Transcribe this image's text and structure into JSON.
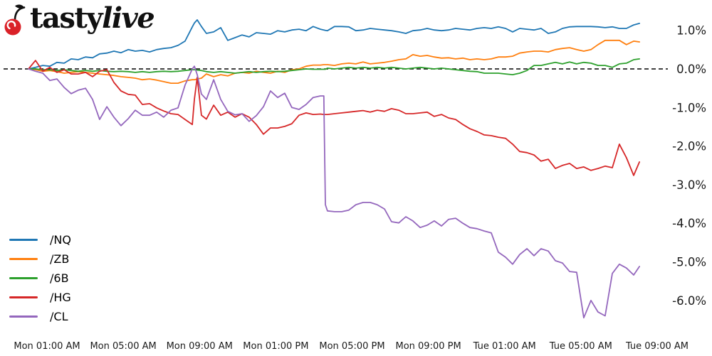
{
  "brand": {
    "name_regular": "tasty",
    "name_italic": "live",
    "cherry_color": "#da2128"
  },
  "chart_data": {
    "type": "line",
    "title": "",
    "xlabel": "",
    "ylabel": "",
    "grid": false,
    "legend_position": "lower left",
    "x_unit": "hours since Mon 12:00 AM",
    "x_range_hours": [
      0.03,
      32.07
    ],
    "ylim_percent": [
      -6.9,
      1.55
    ],
    "zero_line": {
      "value": 0,
      "style": "dashed",
      "color": "#000000"
    },
    "x_ticks": [
      {
        "hour": 1,
        "label": "Mon 01:00 AM"
      },
      {
        "hour": 5,
        "label": "Mon 05:00 AM"
      },
      {
        "hour": 9,
        "label": "Mon 09:00 AM"
      },
      {
        "hour": 13,
        "label": "Mon 01:00 PM"
      },
      {
        "hour": 17,
        "label": "Mon 05:00 PM"
      },
      {
        "hour": 21,
        "label": "Mon 09:00 PM"
      },
      {
        "hour": 25,
        "label": "Tue 01:00 AM"
      },
      {
        "hour": 29,
        "label": "Tue 05:00 AM"
      },
      {
        "hour": 33,
        "label": "Tue 09:00 AM"
      }
    ],
    "y_ticks": [
      {
        "value": 1.0,
        "label": "1.0%"
      },
      {
        "value": 0.0,
        "label": "0.0%"
      },
      {
        "value": -1.0,
        "label": "-1.0%"
      },
      {
        "value": -2.0,
        "label": "-2.0%"
      },
      {
        "value": -3.0,
        "label": "-3.0%"
      },
      {
        "value": -4.0,
        "label": "-4.0%"
      },
      {
        "value": -5.0,
        "label": "-5.0%"
      },
      {
        "value": -6.0,
        "label": "-6.0%"
      }
    ],
    "x_hours": [
      0.03,
      0.4,
      0.78,
      1.15,
      1.52,
      1.9,
      2.27,
      2.64,
      3.02,
      3.39,
      3.76,
      4.14,
      4.51,
      4.88,
      5.26,
      5.63,
      6.0,
      6.38,
      6.75,
      7.12,
      7.5,
      7.87,
      8.24,
      8.62,
      8.73,
      8.88,
      9.1,
      9.36,
      9.74,
      10.11,
      10.48,
      10.86,
      11.23,
      11.6,
      11.98,
      12.35,
      12.72,
      13.1,
      13.47,
      13.84,
      14.22,
      14.59,
      14.96,
      15.34,
      15.52,
      15.6,
      15.71,
      16.08,
      16.46,
      16.83,
      17.2,
      17.58,
      17.95,
      18.32,
      18.7,
      19.07,
      19.45,
      19.82,
      20.19,
      20.57,
      20.94,
      21.31,
      21.69,
      22.06,
      22.43,
      22.81,
      23.18,
      23.55,
      23.93,
      24.3,
      24.67,
      25.05,
      25.42,
      25.79,
      26.17,
      26.54,
      26.91,
      27.29,
      27.66,
      28.03,
      28.41,
      28.78,
      29.15,
      29.53,
      29.9,
      30.27,
      30.65,
      31.02,
      31.39,
      31.77,
      32.07
    ],
    "series": [
      {
        "name": "/NQ",
        "color": "#1f77b4",
        "values": [
          0.0,
          0.04,
          0.09,
          0.07,
          0.17,
          0.15,
          0.26,
          0.24,
          0.31,
          0.29,
          0.39,
          0.41,
          0.46,
          0.42,
          0.5,
          0.46,
          0.48,
          0.44,
          0.5,
          0.53,
          0.55,
          0.61,
          0.72,
          1.09,
          1.19,
          1.27,
          1.1,
          0.92,
          0.96,
          1.07,
          0.74,
          0.81,
          0.88,
          0.83,
          0.94,
          0.92,
          0.9,
          0.99,
          0.96,
          1.01,
          1.03,
          0.99,
          1.1,
          1.03,
          1.01,
          1.0,
          0.99,
          1.1,
          1.1,
          1.09,
          0.99,
          1.01,
          1.05,
          1.03,
          1.01,
          0.99,
          0.96,
          0.92,
          0.99,
          1.01,
          1.05,
          1.01,
          0.99,
          1.01,
          1.05,
          1.03,
          1.01,
          1.05,
          1.07,
          1.05,
          1.09,
          1.05,
          0.96,
          1.05,
          1.03,
          1.01,
          1.05,
          0.92,
          0.96,
          1.05,
          1.09,
          1.1,
          1.1,
          1.1,
          1.09,
          1.07,
          1.09,
          1.05,
          1.05,
          1.14,
          1.18
        ]
      },
      {
        "name": "/ZB",
        "color": "#ff7f0e",
        "values": [
          0.0,
          -0.02,
          -0.06,
          -0.04,
          -0.07,
          -0.11,
          -0.09,
          -0.07,
          -0.09,
          -0.11,
          -0.13,
          -0.15,
          -0.17,
          -0.2,
          -0.22,
          -0.24,
          -0.28,
          -0.26,
          -0.29,
          -0.33,
          -0.37,
          -0.37,
          -0.31,
          -0.28,
          -0.28,
          -0.26,
          -0.24,
          -0.13,
          -0.2,
          -0.15,
          -0.18,
          -0.11,
          -0.09,
          -0.11,
          -0.06,
          -0.09,
          -0.11,
          -0.06,
          -0.09,
          -0.02,
          0.0,
          0.07,
          0.1,
          0.1,
          0.11,
          0.11,
          0.11,
          0.09,
          0.13,
          0.15,
          0.13,
          0.18,
          0.13,
          0.15,
          0.17,
          0.2,
          0.24,
          0.26,
          0.37,
          0.33,
          0.35,
          0.31,
          0.28,
          0.29,
          0.26,
          0.28,
          0.24,
          0.26,
          0.24,
          0.26,
          0.31,
          0.31,
          0.33,
          0.41,
          0.44,
          0.46,
          0.46,
          0.44,
          0.5,
          0.53,
          0.55,
          0.5,
          0.46,
          0.5,
          0.63,
          0.74,
          0.74,
          0.74,
          0.63,
          0.72,
          0.7
        ]
      },
      {
        "name": "/6B",
        "color": "#2ca02c",
        "values": [
          0.0,
          0.0,
          -0.02,
          -0.02,
          -0.04,
          -0.02,
          -0.04,
          -0.06,
          -0.04,
          -0.06,
          -0.04,
          -0.06,
          -0.07,
          -0.06,
          -0.07,
          -0.09,
          -0.07,
          -0.09,
          -0.07,
          -0.06,
          -0.07,
          -0.06,
          -0.04,
          -0.02,
          -0.02,
          -0.03,
          -0.04,
          -0.07,
          -0.09,
          -0.07,
          -0.09,
          -0.11,
          -0.09,
          -0.07,
          -0.09,
          -0.07,
          -0.06,
          -0.07,
          -0.06,
          -0.04,
          -0.02,
          0.0,
          -0.01,
          -0.01,
          -0.01,
          -0.01,
          0.02,
          0.0,
          0.02,
          0.04,
          0.02,
          0.04,
          0.02,
          0.04,
          0.02,
          0.04,
          0.02,
          0.0,
          0.02,
          0.04,
          0.02,
          0.0,
          0.02,
          0.0,
          -0.02,
          -0.04,
          -0.06,
          -0.07,
          -0.11,
          -0.11,
          -0.11,
          -0.13,
          -0.15,
          -0.11,
          -0.04,
          0.09,
          0.09,
          0.13,
          0.17,
          0.13,
          0.18,
          0.13,
          0.17,
          0.15,
          0.09,
          0.09,
          0.04,
          0.13,
          0.15,
          0.24,
          0.26
        ]
      },
      {
        "name": "/HG",
        "color": "#d62728",
        "values": [
          0.0,
          0.22,
          -0.06,
          0.04,
          -0.09,
          -0.02,
          -0.13,
          -0.13,
          -0.09,
          -0.2,
          -0.06,
          -0.02,
          -0.35,
          -0.57,
          -0.66,
          -0.68,
          -0.92,
          -0.9,
          -1.01,
          -1.09,
          -1.16,
          -1.18,
          -1.31,
          -1.44,
          -0.79,
          -0.22,
          -1.2,
          -1.3,
          -0.94,
          -1.2,
          -1.12,
          -1.25,
          -1.16,
          -1.25,
          -1.44,
          -1.69,
          -1.53,
          -1.53,
          -1.49,
          -1.42,
          -1.2,
          -1.14,
          -1.18,
          -1.17,
          -1.18,
          -1.18,
          -1.18,
          -1.16,
          -1.14,
          -1.12,
          -1.1,
          -1.08,
          -1.12,
          -1.07,
          -1.1,
          -1.03,
          -1.07,
          -1.16,
          -1.16,
          -1.14,
          -1.12,
          -1.23,
          -1.18,
          -1.27,
          -1.31,
          -1.44,
          -1.55,
          -1.62,
          -1.71,
          -1.73,
          -1.77,
          -1.8,
          -1.95,
          -2.14,
          -2.17,
          -2.23,
          -2.39,
          -2.34,
          -2.58,
          -2.5,
          -2.45,
          -2.58,
          -2.54,
          -2.63,
          -2.58,
          -2.52,
          -2.56,
          -1.95,
          -2.3,
          -2.76,
          -2.41
        ]
      },
      {
        "name": "/CL",
        "color": "#9467bd",
        "values": [
          0.0,
          -0.06,
          -0.11,
          -0.3,
          -0.26,
          -0.48,
          -0.64,
          -0.55,
          -0.5,
          -0.79,
          -1.31,
          -0.98,
          -1.25,
          -1.47,
          -1.29,
          -1.07,
          -1.2,
          -1.2,
          -1.12,
          -1.25,
          -1.07,
          -1.01,
          -0.42,
          0.0,
          0.07,
          -0.15,
          -0.65,
          -0.79,
          -0.28,
          -0.79,
          -1.1,
          -1.19,
          -1.16,
          -1.36,
          -1.21,
          -0.98,
          -0.57,
          -0.74,
          -0.63,
          -1.0,
          -1.05,
          -0.92,
          -0.74,
          -0.7,
          -0.7,
          -3.52,
          -3.68,
          -3.7,
          -3.7,
          -3.66,
          -3.52,
          -3.46,
          -3.46,
          -3.52,
          -3.63,
          -3.96,
          -3.99,
          -3.83,
          -3.94,
          -4.11,
          -4.05,
          -3.94,
          -4.07,
          -3.9,
          -3.87,
          -4.0,
          -4.11,
          -4.14,
          -4.2,
          -4.25,
          -4.75,
          -4.88,
          -5.06,
          -4.81,
          -4.66,
          -4.84,
          -4.66,
          -4.72,
          -4.97,
          -5.03,
          -5.25,
          -5.27,
          -6.45,
          -6.0,
          -6.3,
          -6.4,
          -5.3,
          -5.06,
          -5.16,
          -5.34,
          -5.12
        ]
      }
    ]
  }
}
